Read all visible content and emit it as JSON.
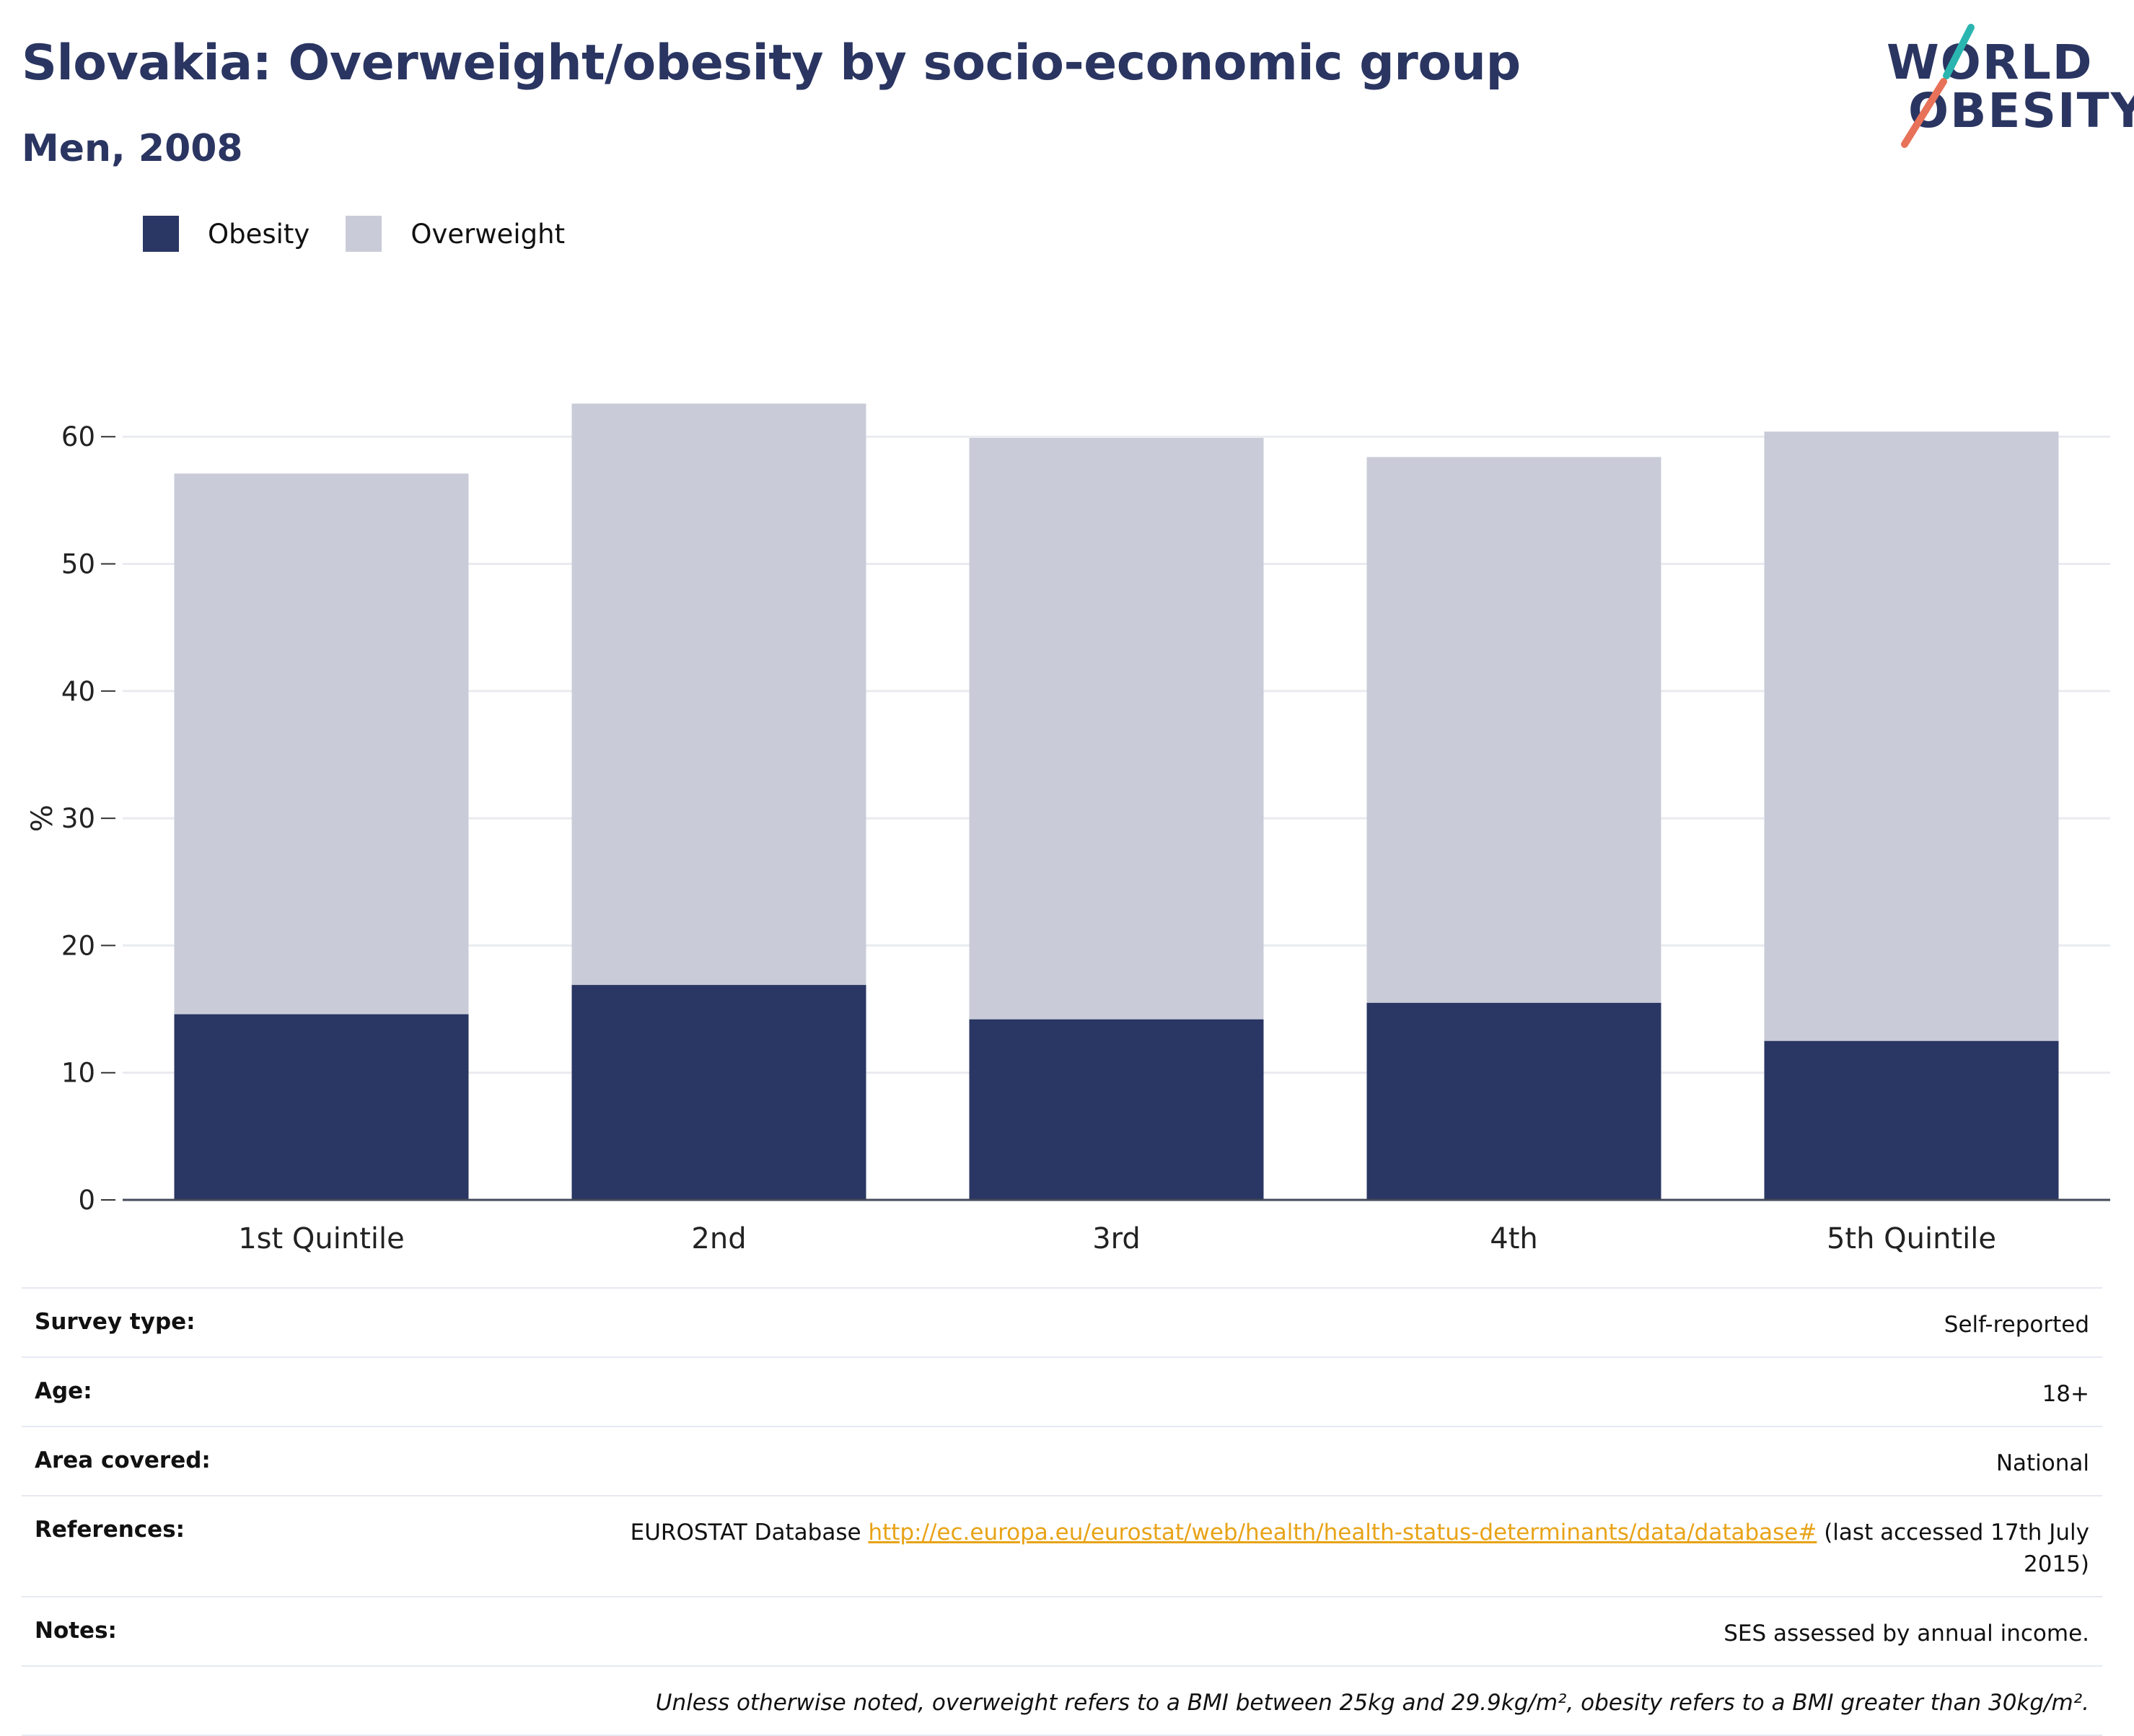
{
  "header": {
    "title": "Slovakia: Overweight/obesity by socio-economic group",
    "subtitle": "Men, 2008"
  },
  "logo": {
    "line1": "WORLD",
    "line2": "OBESITY",
    "accent_colors": [
      "#2bb5b0",
      "#e8715a"
    ]
  },
  "colors": {
    "obesity": "#2a3663",
    "overweight": "#c9ccd8",
    "title": "#2a3561",
    "link": "#e8a317"
  },
  "legend": [
    {
      "label": "Obesity",
      "color": "#2a3663"
    },
    {
      "label": "Overweight",
      "color": "#c9ccd8"
    }
  ],
  "chart_data": {
    "type": "bar",
    "stacked": true,
    "categories": [
      "1st Quintile",
      "2nd",
      "3rd",
      "4th",
      "5th Quintile"
    ],
    "series": [
      {
        "name": "Obesity",
        "values": [
          14.6,
          16.9,
          14.2,
          15.5,
          12.5
        ]
      },
      {
        "name": "Overweight",
        "values": [
          42.5,
          45.7,
          45.7,
          42.9,
          47.9
        ]
      }
    ],
    "ylabel": "%",
    "xlabel": "",
    "ylim": [
      0,
      63
    ],
    "yticks": [
      0,
      10,
      20,
      30,
      40,
      50,
      60
    ],
    "grid": true,
    "legend_position": "top-left"
  },
  "info": {
    "rows": [
      {
        "key": "Survey type:",
        "value": "Self-reported"
      },
      {
        "key": "Age:",
        "value": "18+"
      },
      {
        "key": "Area covered:",
        "value": "National"
      },
      {
        "key": "References:",
        "prefix": "EUROSTAT Database ",
        "link": "http://ec.europa.eu/eurostat/web/health/health-status-determinants/data/database#",
        "suffix": " (last accessed 17th July 2015)"
      },
      {
        "key": "Notes:",
        "value": "SES assessed by annual income."
      }
    ],
    "footnote": "Unless otherwise noted, overweight refers to a BMI between 25kg and 29.9kg/m², obesity refers to a BMI greater than 30kg/m²."
  }
}
